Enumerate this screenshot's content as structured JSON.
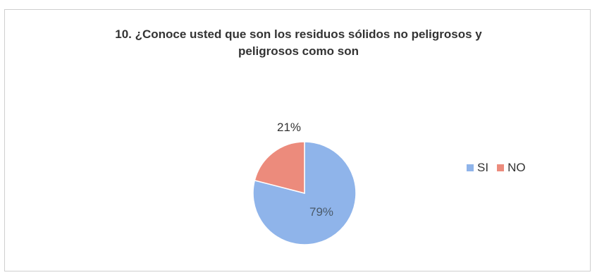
{
  "title_line1": "10.  ¿Conoce usted que son los residuos sólidos no peligrosos y",
  "title_line2": "peligrosos como son",
  "chart_data": {
    "type": "pie",
    "title": "10.  ¿Conoce usted que son los residuos sólidos no peligrosos y peligrosos como son",
    "categories": [
      "SI",
      "NO"
    ],
    "values": [
      79,
      21
    ],
    "labels": [
      "79%",
      "21%"
    ],
    "colors": [
      "#8fb4ea",
      "#ec8b7c"
    ],
    "legend": "right"
  }
}
